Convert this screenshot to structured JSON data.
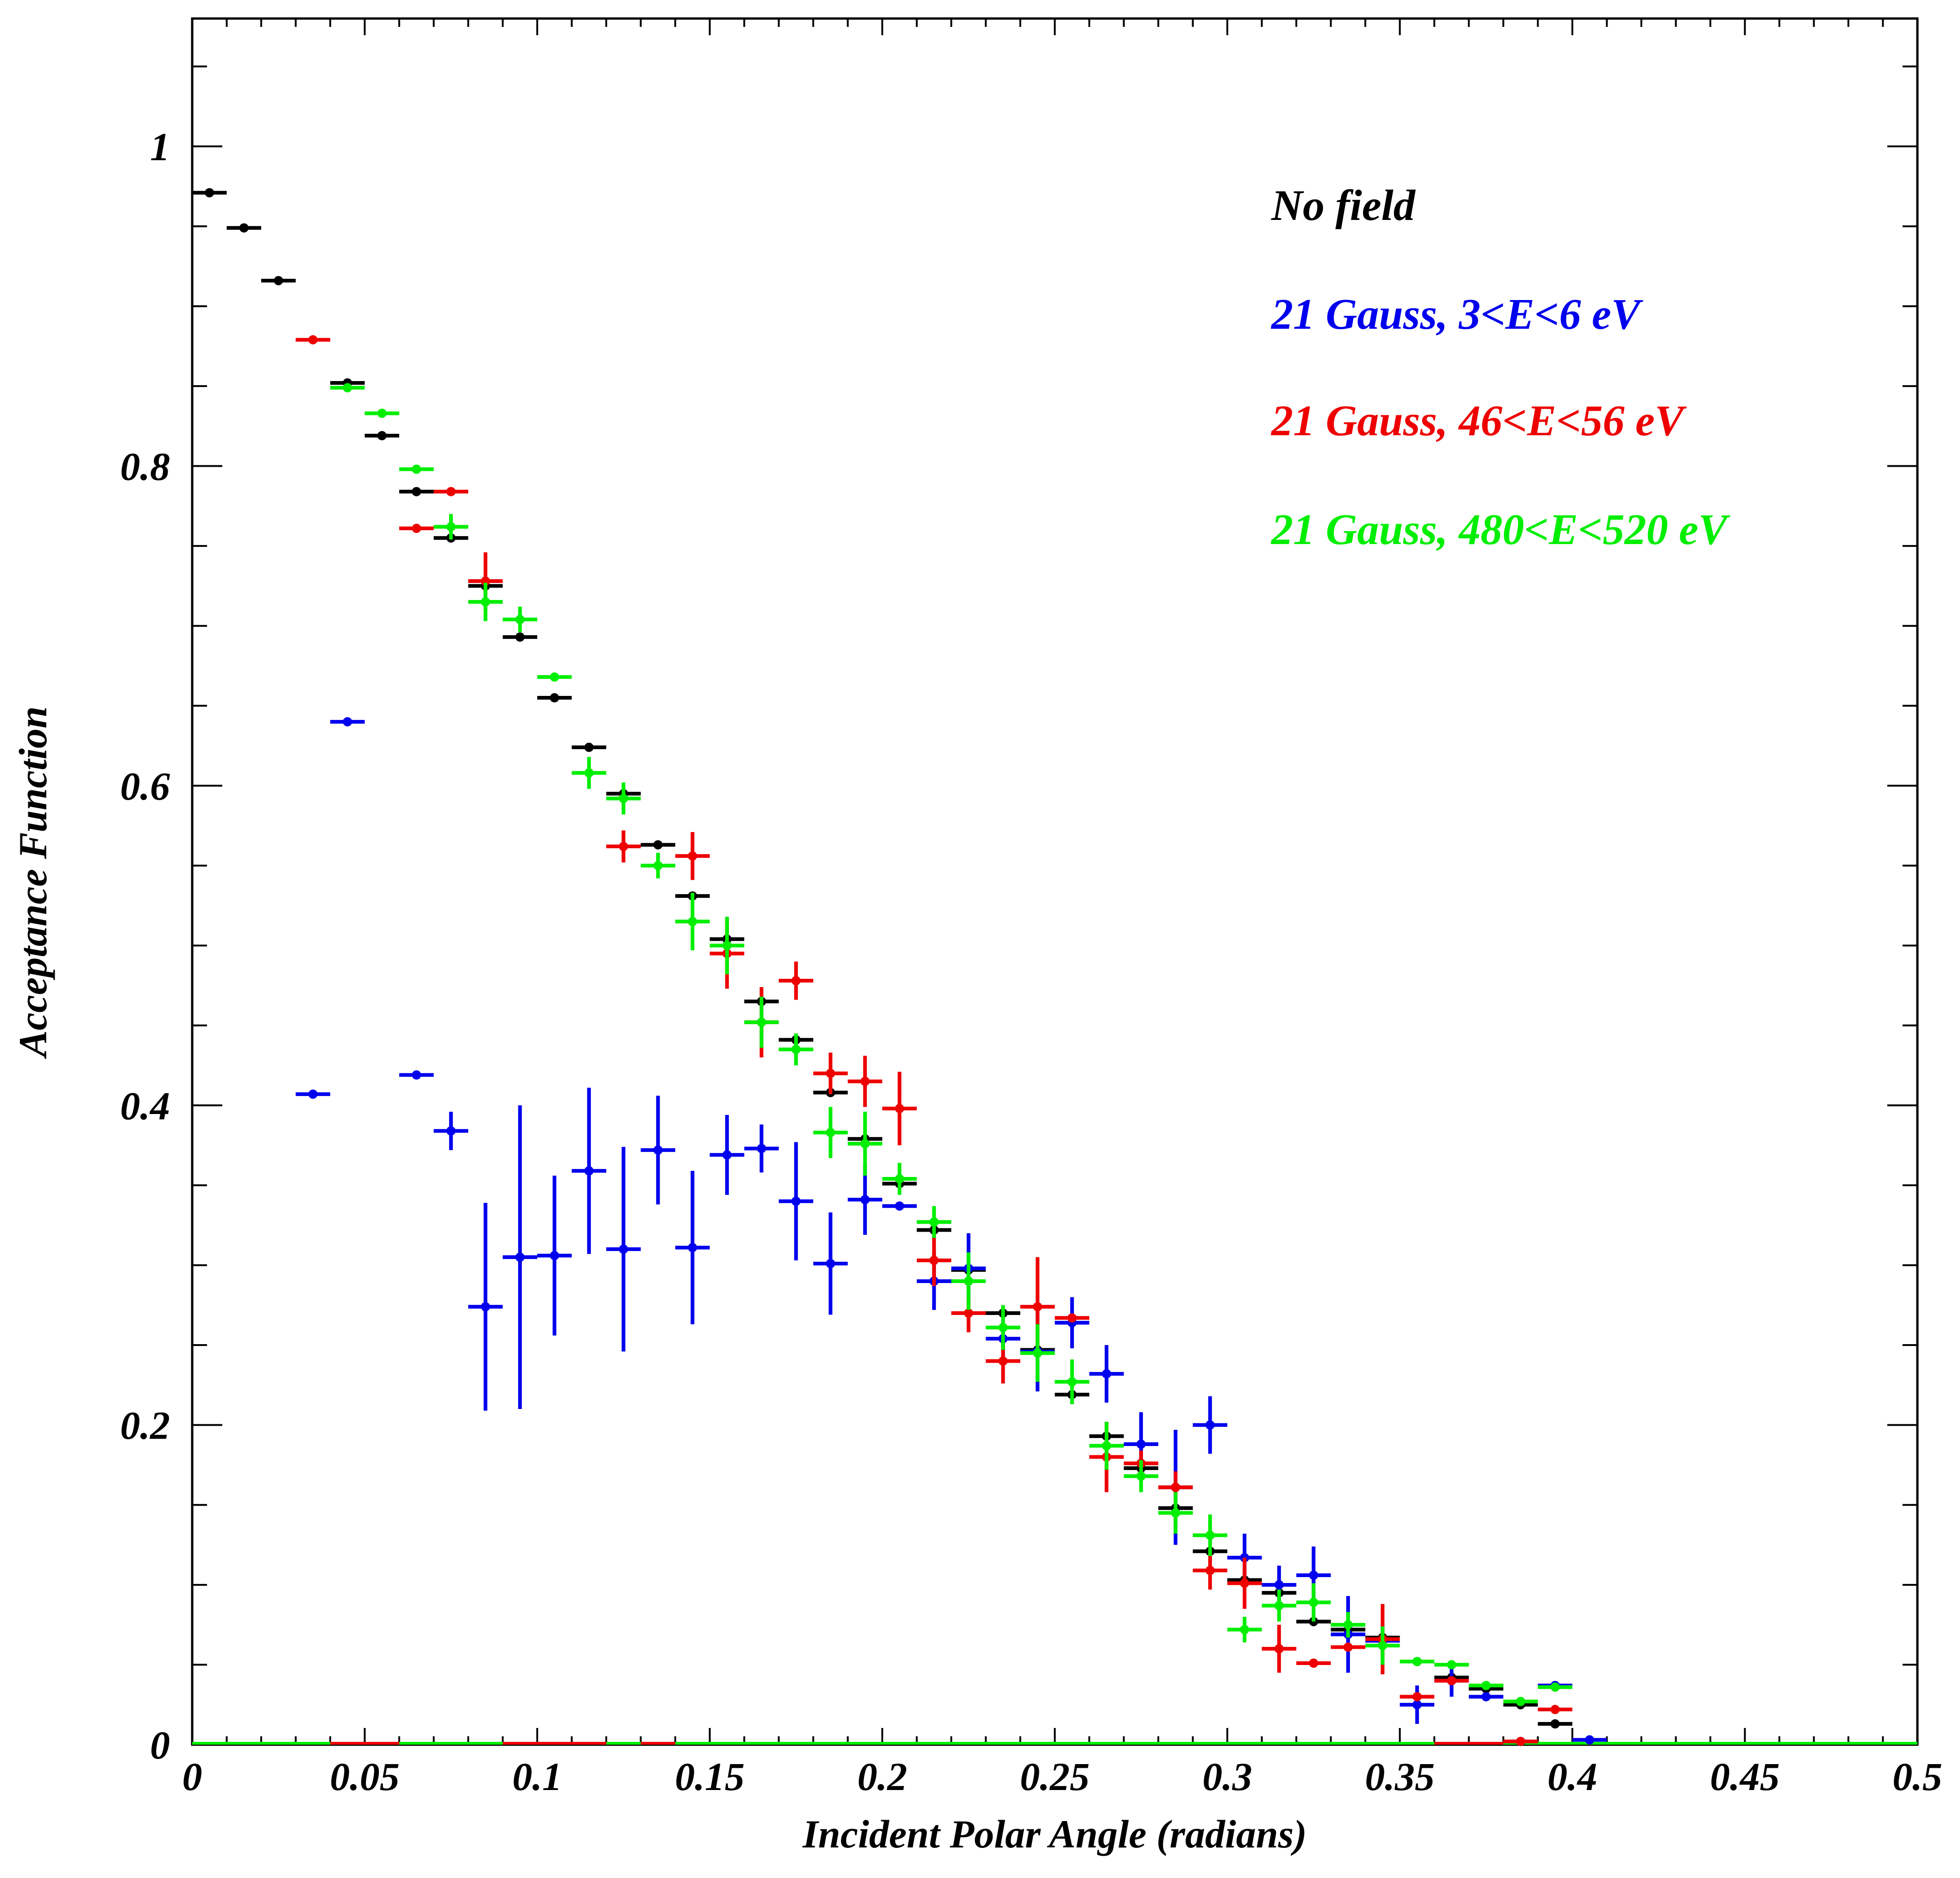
{
  "chart_data": {
    "type": "scatter",
    "title": "",
    "xlabel": "Incident Polar Angle (radians)",
    "ylabel": "Acceptance Function",
    "xlim": [
      0,
      0.5
    ],
    "ylim": [
      0,
      1.08
    ],
    "grid": false,
    "legend_position": "top-right",
    "x_ticks": [
      "0",
      "0.05",
      "0.1",
      "0.15",
      "0.2",
      "0.25",
      "0.3",
      "0.35",
      "0.4",
      "0.45",
      "0.5"
    ],
    "y_ticks": [
      "0",
      "0.2",
      "0.4",
      "0.6",
      "0.8",
      "1"
    ],
    "series": [
      {
        "name": "No field",
        "color": "#000000",
        "x": [
          0.005,
          0.015,
          0.025,
          0.045,
          0.055,
          0.065,
          0.075,
          0.085,
          0.095,
          0.105,
          0.115,
          0.125,
          0.135,
          0.145,
          0.155,
          0.165,
          0.175,
          0.185,
          0.195,
          0.205,
          0.215,
          0.225,
          0.235,
          0.245,
          0.255,
          0.265,
          0.275,
          0.285,
          0.295,
          0.305,
          0.315,
          0.325,
          0.335,
          0.345,
          0.355,
          0.365,
          0.375,
          0.385,
          0.395
        ],
        "y": [
          0.971,
          0.949,
          0.916,
          0.852,
          0.819,
          0.784,
          0.755,
          0.725,
          0.693,
          0.655,
          0.624,
          0.595,
          0.563,
          0.531,
          0.504,
          0.465,
          0.441,
          0.408,
          0.379,
          0.351,
          0.322,
          0.297,
          0.27,
          0.247,
          0.219,
          0.193,
          0.173,
          0.148,
          0.121,
          0.103,
          0.095,
          0.077,
          0.072,
          0.067,
          0.052,
          0.042,
          0.035,
          0.025,
          0.013
        ],
        "yerr": [
          0,
          0,
          0,
          0,
          0,
          0,
          0,
          0,
          0,
          0,
          0,
          0,
          0,
          0,
          0,
          0,
          0,
          0,
          0,
          0,
          0,
          0,
          0,
          0,
          0,
          0,
          0,
          0,
          0,
          0,
          0,
          0,
          0,
          0,
          0,
          0,
          0,
          0,
          0
        ]
      },
      {
        "name": "21 Gauss, 3<E<6 eV",
        "color": "#0000ee",
        "x": [
          0.035,
          0.045,
          0.065,
          0.075,
          0.085,
          0.095,
          0.105,
          0.115,
          0.125,
          0.135,
          0.145,
          0.155,
          0.165,
          0.175,
          0.185,
          0.195,
          0.205,
          0.215,
          0.225,
          0.235,
          0.245,
          0.255,
          0.265,
          0.275,
          0.285,
          0.295,
          0.305,
          0.315,
          0.325,
          0.335,
          0.345,
          0.355,
          0.365,
          0.375,
          0.385,
          0.395,
          0.405
        ],
        "y": [
          0.407,
          0.64,
          0.419,
          0.384,
          0.274,
          0.305,
          0.306,
          0.359,
          0.31,
          0.372,
          0.311,
          0.369,
          0.373,
          0.34,
          0.301,
          0.341,
          0.337,
          0.29,
          0.298,
          0.254,
          0.246,
          0.264,
          0.232,
          0.188,
          0.161,
          0.2,
          0.117,
          0.1,
          0.106,
          0.069,
          0.065,
          0.025,
          0.04,
          0.03,
          0.002,
          0.037,
          0.003
        ],
        "yerr": [
          0,
          0,
          0,
          0.012,
          0.065,
          0.095,
          0.05,
          0.052,
          0.064,
          0.034,
          0.048,
          0.025,
          0.015,
          0.037,
          0.032,
          0.022,
          0,
          0.018,
          0.022,
          0.012,
          0.025,
          0.016,
          0.018,
          0.02,
          0.036,
          0.018,
          0.015,
          0.012,
          0.018,
          0.024,
          0.01,
          0.012,
          0.01,
          0,
          0,
          0,
          0
        ]
      },
      {
        "name": "21 Gauss, 46<E<56 eV",
        "color": "#ee0000",
        "x": [
          0.035,
          0.065,
          0.075,
          0.085,
          0.125,
          0.145,
          0.155,
          0.165,
          0.175,
          0.185,
          0.195,
          0.205,
          0.215,
          0.225,
          0.235,
          0.245,
          0.255,
          0.265,
          0.275,
          0.285,
          0.295,
          0.305,
          0.315,
          0.325,
          0.335,
          0.345,
          0.355,
          0.365,
          0.385,
          0.395
        ],
        "y": [
          0.879,
          0.761,
          0.784,
          0.728,
          0.562,
          0.556,
          0.495,
          0.452,
          0.478,
          0.42,
          0.415,
          0.398,
          0.303,
          0.27,
          0.24,
          0.274,
          0.267,
          0.18,
          0.176,
          0.161,
          0.109,
          0.101,
          0.06,
          0.051,
          0.061,
          0.066,
          0.03,
          0.04,
          0.002,
          0.022
        ],
        "yerr": [
          0,
          0,
          0,
          0.018,
          0.01,
          0.015,
          0.022,
          0.022,
          0.012,
          0.013,
          0.016,
          0.023,
          0.016,
          0.012,
          0.014,
          0.031,
          0,
          0.022,
          0.008,
          0.01,
          0.012,
          0.016,
          0.015,
          0,
          0,
          0.022,
          0,
          0,
          0,
          0
        ]
      },
      {
        "name": "21 Gauss, 480<E<520 eV",
        "color": "#00ee00",
        "x": [
          0.045,
          0.055,
          0.065,
          0.075,
          0.085,
          0.095,
          0.105,
          0.115,
          0.125,
          0.135,
          0.145,
          0.155,
          0.165,
          0.175,
          0.185,
          0.195,
          0.205,
          0.215,
          0.225,
          0.235,
          0.245,
          0.255,
          0.265,
          0.275,
          0.285,
          0.295,
          0.305,
          0.315,
          0.325,
          0.335,
          0.345,
          0.355,
          0.365,
          0.375,
          0.385,
          0.395
        ],
        "y": [
          0.849,
          0.833,
          0.798,
          0.762,
          0.715,
          0.704,
          0.668,
          0.608,
          0.592,
          0.55,
          0.515,
          0.5,
          0.452,
          0.435,
          0.383,
          0.376,
          0.354,
          0.327,
          0.29,
          0.261,
          0.245,
          0.227,
          0.187,
          0.168,
          0.145,
          0.131,
          0.072,
          0.087,
          0.089,
          0.075,
          0.062,
          0.052,
          0.05,
          0.037,
          0.027,
          0.036
        ],
        "yerr": [
          0,
          0,
          0,
          0.008,
          0.012,
          0.008,
          0,
          0.01,
          0.01,
          0.008,
          0.018,
          0.018,
          0.016,
          0.01,
          0.016,
          0.02,
          0.01,
          0.01,
          0.018,
          0.014,
          0.018,
          0.014,
          0.015,
          0.01,
          0.013,
          0.013,
          0.008,
          0.01,
          0.012,
          0.008,
          0.012,
          0,
          0,
          0,
          0,
          0
        ]
      }
    ],
    "zero_segments": [
      {
        "color": "#00ee00",
        "x": [
          0.0,
          0.04
        ]
      },
      {
        "color": "#ee0000",
        "x": [
          0.04,
          0.06
        ]
      },
      {
        "color": "#00ee00",
        "x": [
          0.06,
          0.09
        ]
      },
      {
        "color": "#ee0000",
        "x": [
          0.09,
          0.12
        ]
      },
      {
        "color": "#00ee00",
        "x": [
          0.12,
          0.13
        ]
      },
      {
        "color": "#ee0000",
        "x": [
          0.13,
          0.14
        ]
      },
      {
        "color": "#00ee00",
        "x": [
          0.14,
          0.36
        ]
      },
      {
        "color": "#ee0000",
        "x": [
          0.36,
          0.38
        ]
      },
      {
        "color": "#00ee00",
        "x": [
          0.38,
          0.5
        ]
      }
    ]
  }
}
